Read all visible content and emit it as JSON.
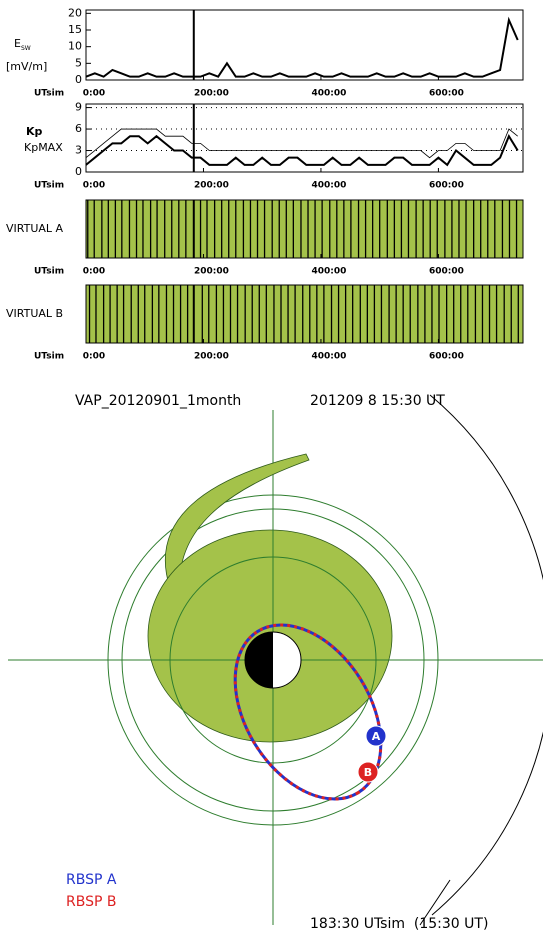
{
  "chart_data": [
    {
      "type": "line",
      "y_label": "E",
      "y_label_sub": "SW",
      "y_unit": "[mV/m]",
      "x_label": "UTsim",
      "x": [
        0,
        15,
        30,
        45,
        60,
        75,
        90,
        105,
        120,
        135,
        150,
        165,
        180,
        195,
        210,
        225,
        240,
        255,
        270,
        285,
        300,
        315,
        330,
        345,
        360,
        375,
        390,
        405,
        420,
        435,
        450,
        465,
        480,
        495,
        510,
        525,
        540,
        555,
        570,
        585,
        600,
        615,
        630,
        645,
        660,
        675,
        690,
        705,
        720,
        735
      ],
      "series": [
        {
          "name": null,
          "color": "#000000",
          "values": [
            1,
            2,
            1,
            3,
            2,
            1,
            1,
            2,
            1,
            1,
            2,
            1,
            1,
            1,
            2,
            1,
            5,
            1,
            1,
            2,
            1,
            1,
            2,
            1,
            1,
            1,
            2,
            1,
            1,
            2,
            1,
            1,
            1,
            2,
            1,
            1,
            2,
            1,
            1,
            2,
            1,
            1,
            1,
            2,
            1,
            1,
            2,
            3,
            18,
            12
          ]
        }
      ],
      "marker_x": 183.5,
      "xlim": [
        0,
        744
      ],
      "xticks": [
        {
          "value": 0,
          "label": "0:00"
        },
        {
          "value": 200,
          "label": "200:00"
        },
        {
          "value": 400,
          "label": "400:00"
        },
        {
          "value": 600,
          "label": "600:00"
        }
      ],
      "ylim": [
        0,
        21
      ],
      "yticks": [
        0,
        5,
        10,
        15,
        20
      ],
      "grid": false
    },
    {
      "type": "line",
      "x_label": "UTsim",
      "x": [
        0,
        15,
        30,
        45,
        60,
        75,
        90,
        105,
        120,
        135,
        150,
        165,
        180,
        195,
        210,
        225,
        240,
        255,
        270,
        285,
        300,
        315,
        330,
        345,
        360,
        375,
        390,
        405,
        420,
        435,
        450,
        465,
        480,
        495,
        510,
        525,
        540,
        555,
        570,
        585,
        600,
        615,
        630,
        645,
        660,
        675,
        690,
        705,
        720,
        735
      ],
      "series": [
        {
          "name": "Kp",
          "color": "#000000",
          "values": [
            1,
            2,
            3,
            4,
            4,
            5,
            5,
            4,
            5,
            4,
            3,
            3,
            2,
            2,
            1,
            1,
            1,
            2,
            1,
            1,
            2,
            1,
            1,
            2,
            2,
            1,
            1,
            1,
            2,
            1,
            1,
            2,
            1,
            1,
            1,
            2,
            2,
            1,
            1,
            1,
            2,
            1,
            3,
            2,
            1,
            1,
            1,
            2,
            5,
            3
          ]
        },
        {
          "name": "KpMAX",
          "color": "#000000",
          "values": [
            2,
            3,
            4,
            5,
            6,
            6,
            6,
            6,
            6,
            5,
            5,
            5,
            4,
            4,
            3,
            3,
            3,
            3,
            3,
            3,
            3,
            3,
            3,
            3,
            3,
            3,
            3,
            3,
            3,
            3,
            3,
            3,
            3,
            3,
            3,
            3,
            3,
            3,
            3,
            2,
            3,
            3,
            4,
            4,
            3,
            3,
            3,
            3,
            6,
            5
          ]
        }
      ],
      "marker_x": 183.5,
      "xlim": [
        0,
        744
      ],
      "xticks": [
        {
          "value": 0,
          "label": "0:00"
        },
        {
          "value": 200,
          "label": "200:00"
        },
        {
          "value": 400,
          "label": "400:00"
        },
        {
          "value": 600,
          "label": "600:00"
        }
      ],
      "ylim": [
        0,
        9.5
      ],
      "yticks": [
        0,
        3,
        6,
        9
      ],
      "grid": true
    },
    {
      "type": "strip",
      "y_label": "VIRTUAL A",
      "x_label": "UTsim",
      "fill": "#a4c24a",
      "x": [
        3,
        14,
        27,
        38,
        50,
        61,
        74,
        86,
        97,
        110,
        121,
        134,
        146,
        158,
        170,
        195,
        206,
        219,
        231,
        243,
        255,
        268,
        280,
        292,
        304,
        317,
        329,
        341,
        353,
        366,
        378,
        390,
        402,
        415,
        427,
        439,
        451,
        464,
        476,
        488,
        500,
        513,
        525,
        537,
        549,
        562,
        574,
        586,
        598,
        611,
        623,
        635,
        647,
        660,
        672,
        684,
        696,
        709,
        721,
        733
      ],
      "marker_x": 183.5,
      "xlim": [
        0,
        744
      ],
      "xticks": [
        {
          "value": 0,
          "label": "0:00"
        },
        {
          "value": 200,
          "label": "200:00"
        },
        {
          "value": 400,
          "label": "400:00"
        },
        {
          "value": 600,
          "label": "600:00"
        }
      ]
    },
    {
      "type": "strip",
      "y_label": "VIRTUAL B",
      "x_label": "UTsim",
      "fill": "#a4c24a",
      "x": [
        6,
        17,
        30,
        41,
        53,
        64,
        77,
        89,
        100,
        113,
        124,
        137,
        149,
        161,
        173,
        198,
        209,
        222,
        234,
        246,
        258,
        271,
        283,
        295,
        307,
        320,
        332,
        344,
        356,
        369,
        381,
        393,
        405,
        418,
        430,
        442,
        454,
        467,
        479,
        491,
        503,
        516,
        528,
        540,
        552,
        565,
        577,
        589,
        601,
        614,
        626,
        638,
        650,
        663,
        675,
        687,
        699,
        712,
        724,
        736
      ],
      "marker_x": 183.5,
      "xlim": [
        0,
        744
      ],
      "xticks": [
        {
          "value": 0,
          "label": "0:00"
        },
        {
          "value": 200,
          "label": "200:00"
        },
        {
          "value": 400,
          "label": "400:00"
        },
        {
          "value": 600,
          "label": "600:00"
        }
      ]
    }
  ],
  "orbit_plot": {
    "title": "VAP_20120901_1month",
    "time": "201209 8 15:30 UT",
    "sim_time": "183:30 UTsim  (15:30 UT)",
    "markers": [
      "A",
      "B"
    ],
    "legend": [
      "RBSP A",
      "RBSP B"
    ]
  }
}
